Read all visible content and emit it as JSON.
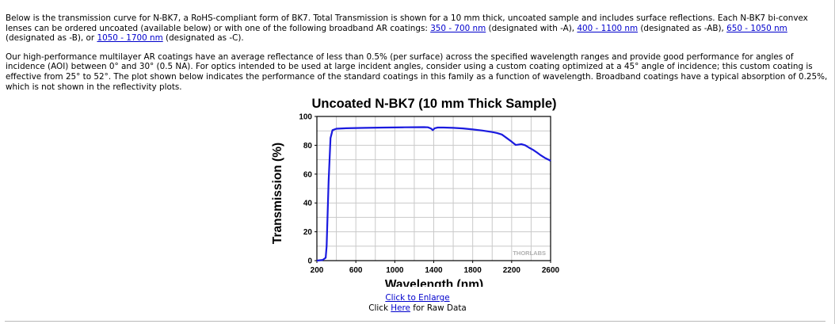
{
  "intro": {
    "p1": [
      {
        "text": "Below is the transmission curve for N-BK7, a RoHS-compliant form of BK7. Total Transmission is shown for a 10 mm thick, uncoated sample and includes surface reflections. Each N-BK7 bi-convex lenses can be ordered uncoated (available below) or with one of the following broadband AR coatings: "
      },
      {
        "text": "350 - 700 nm",
        "link": true
      },
      {
        "text": " (designated with -A), "
      },
      {
        "text": "400 - 1100 nm",
        "link": true
      },
      {
        "text": " (designated as -AB), "
      },
      {
        "text": "650 - 1050 nm",
        "link": true
      },
      {
        "text": " (designated as -B), or "
      },
      {
        "text": "1050 - 1700 nm",
        "link": true
      },
      {
        "text": " (designated as -C)."
      }
    ],
    "p2": "Our high-performance multilayer AR coatings have an average reflectance of less than 0.5% (per surface) across the specified wavelength ranges and provide good performance for angles of incidence (AOI) between 0° and 30° (0.5 NA). For optics intended to be used at large incident angles, consider using a custom coating optimized at a 45° angle of incidence; this custom coating is effective from 25° to 52°. The plot shown below indicates the performance of the standard coatings in this family as a function of wavelength. Broadband coatings have a typical absorption of 0.25%, which is not shown in the reflectivity plots."
  },
  "links": {
    "enlarge": "Click to Enlarge",
    "raw_prefix": "Click ",
    "raw_link": "Here",
    "raw_suffix": " for Raw Data"
  },
  "chart_data": {
    "type": "line",
    "title": "Uncoated N-BK7 (10 mm Thick Sample)",
    "xlabel": "Wavelength (nm)",
    "ylabel": "Transmission (%)",
    "xlim": [
      200,
      2600
    ],
    "ylim": [
      0,
      100
    ],
    "xticks": [
      200,
      600,
      1000,
      1400,
      1800,
      2200,
      2600
    ],
    "yticks": [
      0,
      20,
      40,
      60,
      80,
      100
    ],
    "grid": true,
    "watermark": "THORLABS",
    "color": "#1a1adf",
    "series": [
      {
        "x": [
          200,
          260,
          290,
          300,
          320,
          340,
          360,
          400,
          500,
          700,
          900,
          1100,
          1300,
          1340,
          1370,
          1390,
          1410,
          1440,
          1500,
          1600,
          1700,
          1800,
          1900,
          2000,
          2050,
          2100,
          2150,
          2200,
          2240,
          2260,
          2300,
          2340,
          2380,
          2420,
          2460,
          2500,
          2540,
          2580,
          2600
        ],
        "y": [
          0,
          0.5,
          2,
          10,
          55,
          85,
          90.5,
          91.5,
          91.8,
          92.1,
          92.3,
          92.5,
          92.6,
          92.5,
          91.7,
          90.5,
          91.8,
          92.3,
          92.3,
          92.1,
          91.7,
          91.0,
          90.2,
          89.2,
          88.5,
          87.5,
          85,
          82.5,
          80.3,
          80.4,
          80.8,
          80,
          78.3,
          76.8,
          75,
          73,
          71.3,
          70,
          69.2
        ]
      }
    ]
  }
}
